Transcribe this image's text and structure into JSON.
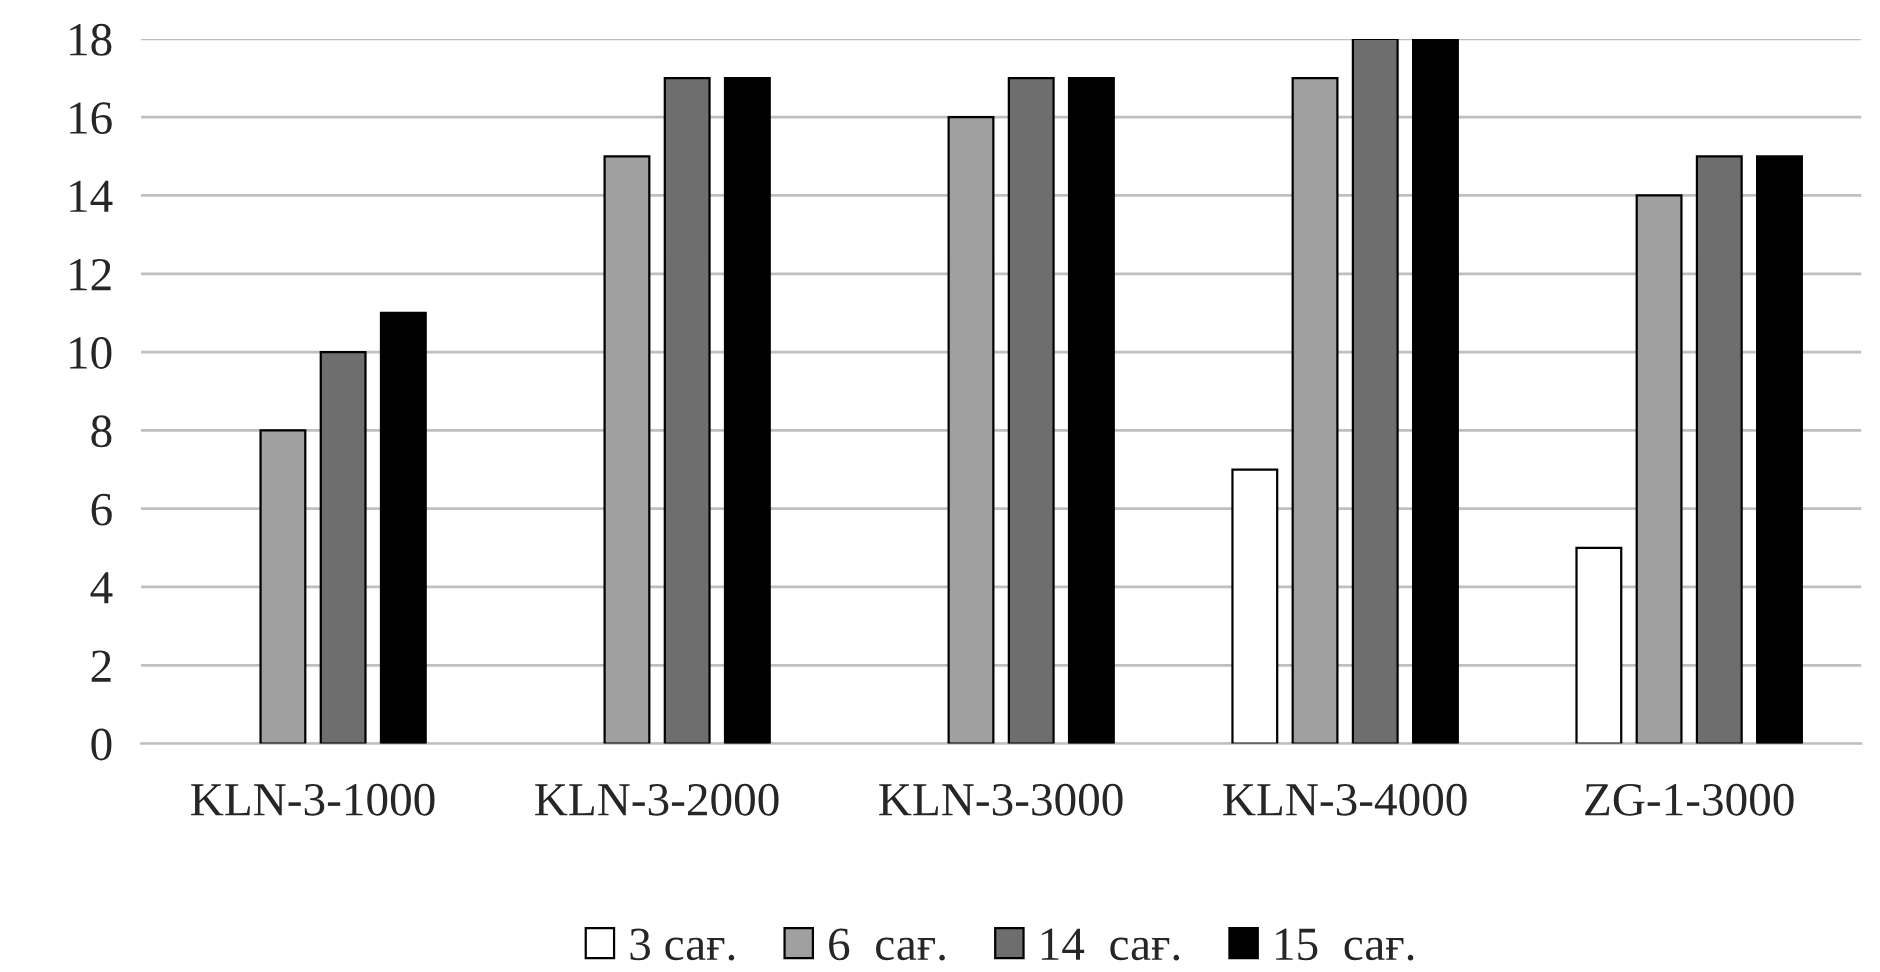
{
  "chart_data": {
    "type": "bar",
    "categories": [
      "KLN-3-1000",
      "KLN-3-2000",
      "KLN-3-3000",
      "KLN-3-4000",
      "ZG-1-3000"
    ],
    "series": [
      {
        "name": "3 сағ.",
        "color": "#ffffff",
        "values": [
          null,
          null,
          null,
          7,
          5
        ]
      },
      {
        "name": "6  сағ.",
        "color": "#a0a0a0",
        "values": [
          8,
          15,
          16,
          17,
          14
        ]
      },
      {
        "name": "14  сағ.",
        "color": "#6e6e6e",
        "values": [
          10,
          17,
          17,
          18,
          15
        ]
      },
      {
        "name": "15  сағ.",
        "color": "#000000",
        "values": [
          11,
          17,
          17,
          18,
          15
        ]
      }
    ],
    "ylim": [
      0,
      18
    ],
    "yticks": [
      0,
      2,
      4,
      6,
      8,
      10,
      12,
      14,
      16,
      18
    ],
    "grid": "y",
    "legend": "bottom"
  }
}
